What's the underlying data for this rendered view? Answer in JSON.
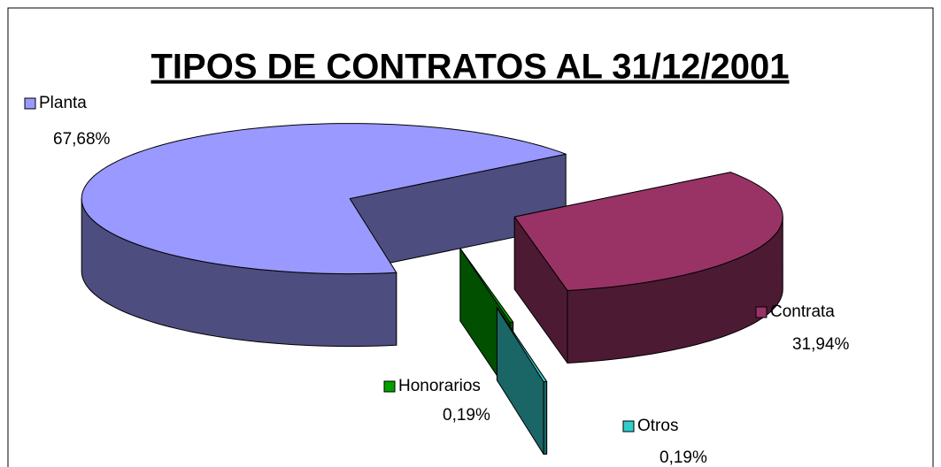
{
  "chart_data": {
    "type": "pie",
    "title": "TIPOS DE CONTRATOS AL 31/12/2001",
    "categories": [
      "Planta",
      "Contrata",
      "Honorarios",
      "Otros"
    ],
    "values": [
      67.68,
      31.94,
      0.19,
      0.19
    ],
    "value_labels": [
      "67,68%",
      "31,94%",
      "0,19%",
      "0,19%"
    ],
    "colors": [
      "#9999ff",
      "#993366",
      "#00a000",
      "#33cccc"
    ]
  }
}
